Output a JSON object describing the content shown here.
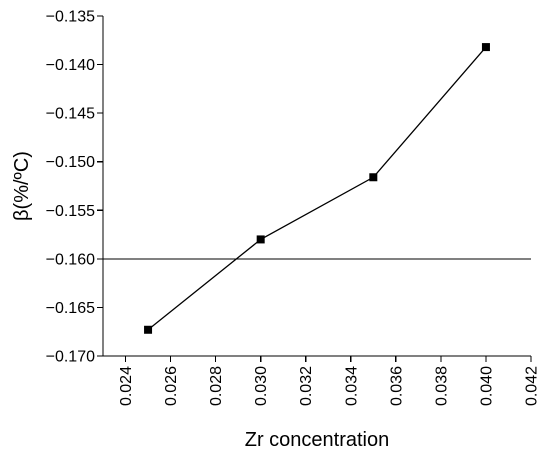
{
  "chart_data": {
    "type": "line",
    "title": "",
    "xlabel": "Zr concentration",
    "ylabel": "β(%/ºC)",
    "xlim": [
      0.023,
      0.042
    ],
    "ylim": [
      -0.17,
      -0.135
    ],
    "x_ticks": [
      0.024,
      0.026,
      0.028,
      0.03,
      0.032,
      0.034,
      0.036,
      0.038,
      0.04,
      0.042
    ],
    "x_tick_labels": [
      "0.024",
      "0.026",
      "0.028",
      "0.030",
      "0.032",
      "0.034",
      "0.036",
      "0.038",
      "0.040",
      "0.042"
    ],
    "y_ticks": [
      -0.135,
      -0.14,
      -0.145,
      -0.15,
      -0.155,
      -0.16,
      -0.165,
      -0.17
    ],
    "y_tick_labels": [
      "−0.135",
      "−0.140",
      "−0.145",
      "−0.150",
      "−0.155",
      "−0.160",
      "−0.165",
      "−0.170"
    ],
    "series": [
      {
        "x": [
          0.025,
          0.03,
          0.035,
          0.04
        ],
        "y": [
          -0.1673,
          -0.158,
          -0.1516,
          -0.1382
        ],
        "marker": "square",
        "color": "#000000"
      }
    ],
    "reference_lines": [
      {
        "orientation": "horizontal",
        "y": -0.16,
        "color": "#000000"
      }
    ],
    "grid": false,
    "legend": "none"
  }
}
